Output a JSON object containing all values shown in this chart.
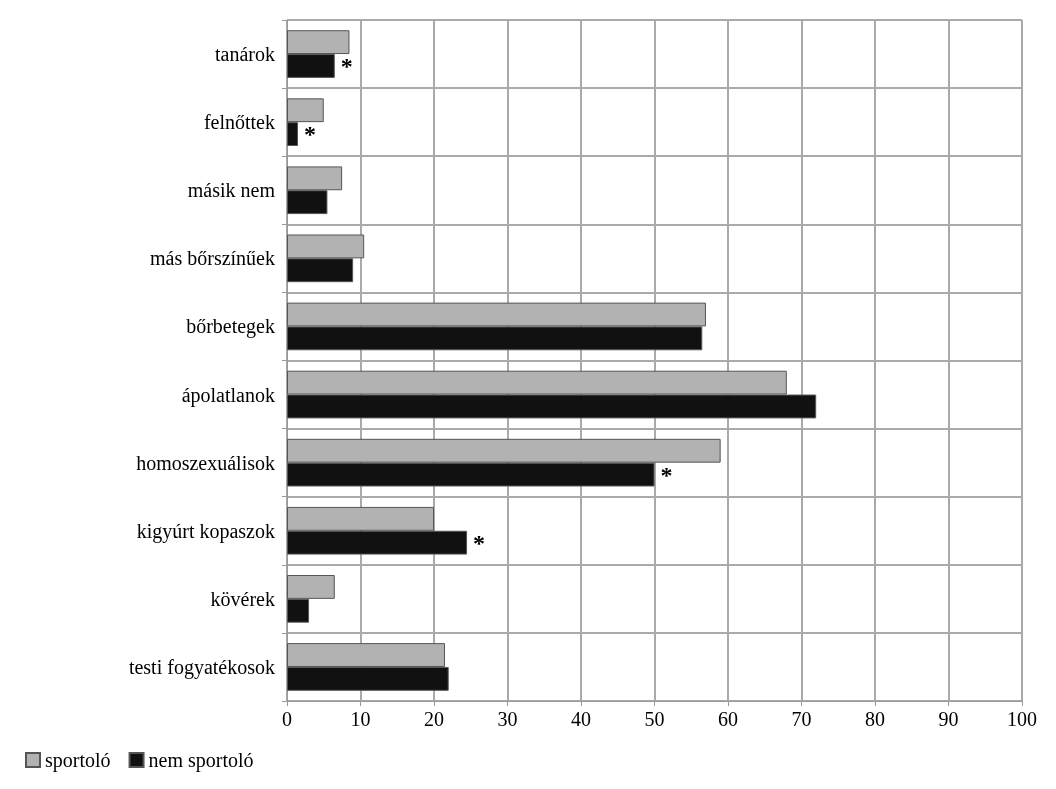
{
  "chart_data": {
    "type": "bar",
    "orientation": "horizontal",
    "categories": [
      "tanárok",
      "felnőttek",
      "másik nem",
      "más bőrszínűek",
      "bőrbetegek",
      "ápolatlanok",
      "homoszexuálisok",
      "kigyúrt kopaszok",
      "kövérek",
      "testi fogyatékosok"
    ],
    "series": [
      {
        "name": "sportoló",
        "color": "#b2b2b2",
        "values": [
          8.5,
          5,
          7.5,
          10.5,
          57,
          68,
          59,
          20,
          6.5,
          21.5
        ]
      },
      {
        "name": "nem sportoló",
        "color": "#111111",
        "values": [
          6.5,
          1.5,
          5.5,
          9,
          56.5,
          72,
          50,
          24.5,
          3,
          22
        ],
        "value_labels": [
          "*",
          "*",
          null,
          null,
          null,
          null,
          "*",
          "*",
          null,
          null
        ]
      }
    ],
    "xlim": [
      0,
      100
    ],
    "xticks": [
      0,
      10,
      20,
      30,
      40,
      50,
      60,
      70,
      80,
      90,
      100
    ],
    "grid": true,
    "legend": "bottom left"
  }
}
